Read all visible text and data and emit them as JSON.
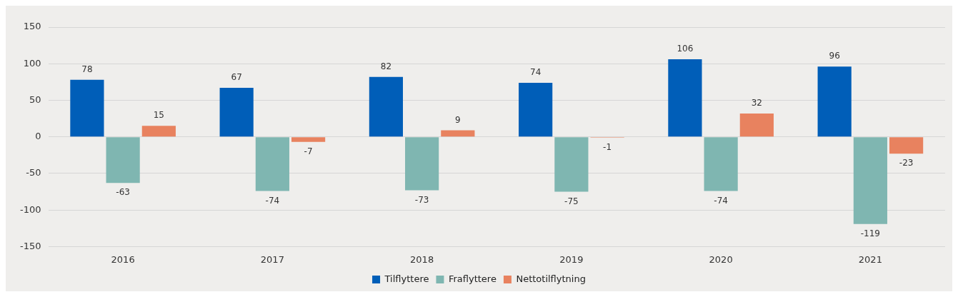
{
  "chart_data": {
    "type": "bar",
    "categories": [
      "2016",
      "2017",
      "2018",
      "2019",
      "2020",
      "2021"
    ],
    "series": [
      {
        "name": "Tilflyttere",
        "color": "#005eb8",
        "values": [
          78,
          67,
          82,
          74,
          106,
          96
        ]
      },
      {
        "name": "Fraflyttere",
        "color": "#7fb6b1",
        "values": [
          -63,
          -74,
          -73,
          -75,
          -74,
          -119
        ]
      },
      {
        "name": "Nettotilflytning",
        "color": "#e8825f",
        "values": [
          15,
          -7,
          9,
          -1,
          32,
          -23
        ]
      }
    ],
    "ylim": [
      -150,
      150
    ],
    "yticks": [
      -150,
      -100,
      -50,
      0,
      50,
      100,
      150
    ],
    "grid": "y",
    "legend": "bottom",
    "data_labels": true
  }
}
